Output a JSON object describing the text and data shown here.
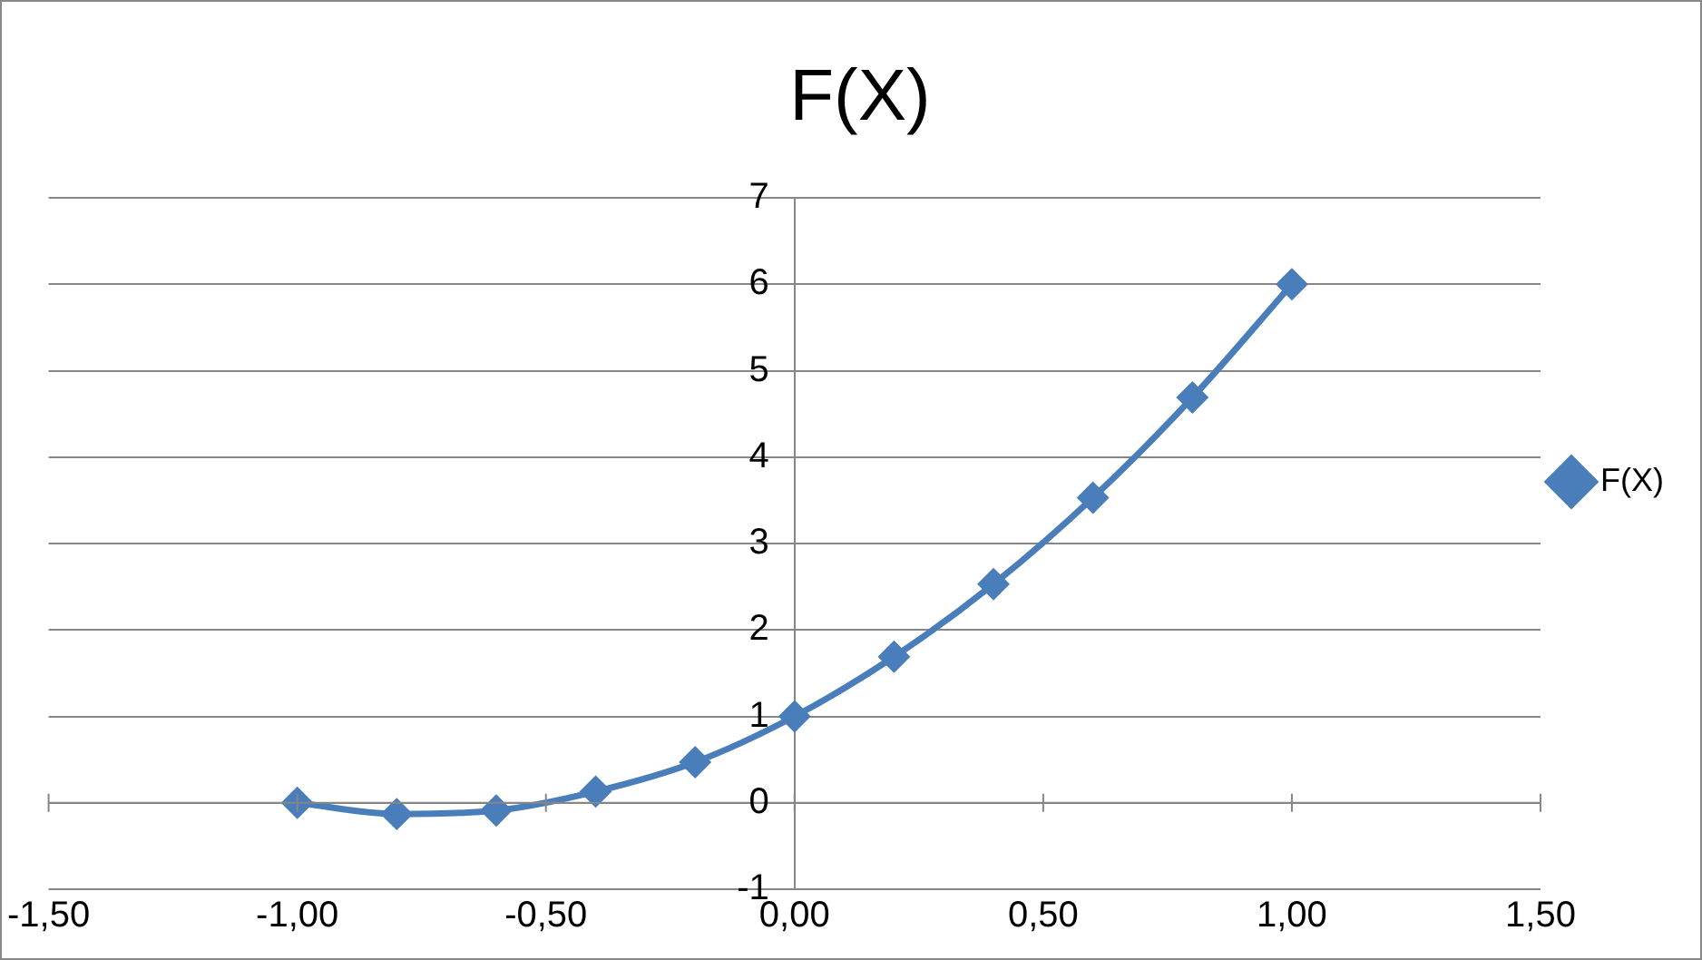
{
  "chart_data": {
    "type": "line",
    "title": "F(X)",
    "x": [
      -1,
      -0.8,
      -0.6,
      -0.4,
      -0.2,
      0,
      0.2,
      0.4,
      0.6,
      0.8,
      1
    ],
    "series": [
      {
        "name": "F(X)",
        "color": "#4a7ebb",
        "values": [
          0,
          -0.13,
          -0.09,
          0.13,
          0.47,
          1,
          1.69,
          2.53,
          3.53,
          4.69,
          6
        ]
      }
    ],
    "xlim": [
      -1.5,
      1.5
    ],
    "xticks": [
      {
        "value": -1.5,
        "label": "-1,50"
      },
      {
        "value": -1,
        "label": "-1,00"
      },
      {
        "value": -0.5,
        "label": "-0,50"
      },
      {
        "value": 0,
        "label": "0,00"
      },
      {
        "value": 0.5,
        "label": "0,50"
      },
      {
        "value": 1,
        "label": "1,00"
      },
      {
        "value": 1.5,
        "label": "1,50"
      }
    ],
    "ylim": [
      -1,
      7
    ],
    "yticks": [
      -1,
      0,
      1,
      2,
      3,
      4,
      5,
      6,
      7
    ],
    "grid": "y",
    "legend": "right",
    "marker": "diamond",
    "line_style": "solid"
  }
}
